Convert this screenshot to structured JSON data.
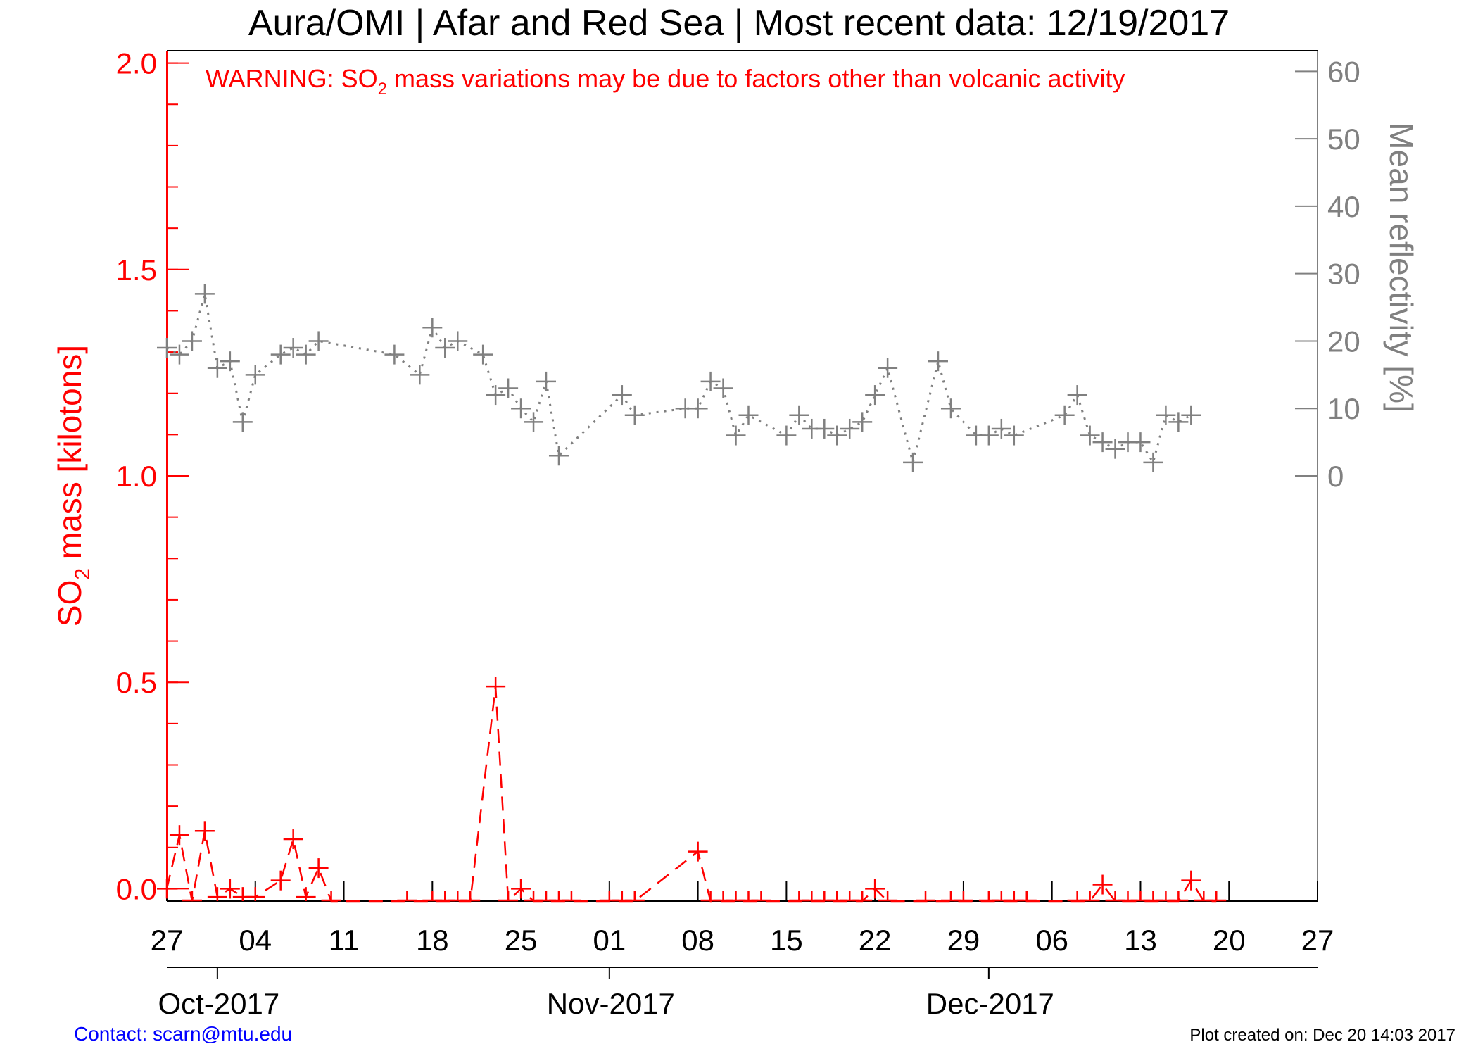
{
  "page": {
    "title": "Aura/OMI | Afar and Red Sea | Most recent data: 12/19/2017",
    "warning_prefix": "WARNING: SO",
    "warning_sub": "2",
    "warning_suffix": " mass variations may be due to factors other than volcanic activity",
    "contact": "Contact: scarn@mtu.edu",
    "plot_created": "Plot created on: Dec 20 14:03 2017"
  },
  "colors": {
    "so2": "#ff0000",
    "reflectivity": "#808080",
    "contact": "#0000ff"
  },
  "chart_data": {
    "type": "line",
    "title": "Aura/OMI | Afar and Red Sea | Most recent data: 12/19/2017",
    "grid": false,
    "x_range": [
      "2017-09-27",
      "2017-12-27"
    ],
    "x_tick_labels": [
      "27",
      "04",
      "11",
      "18",
      "25",
      "01",
      "08",
      "15",
      "22",
      "29",
      "06",
      "13",
      "20",
      "27"
    ],
    "x_tick_dates": [
      "2017-09-27",
      "2017-10-04",
      "2017-10-11",
      "2017-10-18",
      "2017-10-25",
      "2017-11-01",
      "2017-11-08",
      "2017-11-15",
      "2017-11-22",
      "2017-11-29",
      "2017-12-06",
      "2017-12-13",
      "2017-12-20",
      "2017-12-27"
    ],
    "months": [
      {
        "label": "Oct-2017",
        "start": "2017-10-01"
      },
      {
        "label": "Nov-2017",
        "start": "2017-11-01"
      },
      {
        "label": "Dec-2017",
        "start": "2017-12-01"
      }
    ],
    "y_left": {
      "label_main": "SO",
      "label_sub": "2",
      "label_tail": " mass [kilotons]",
      "range": [
        -0.03,
        2.03
      ],
      "major_ticks": [
        0.0,
        0.5,
        1.0,
        1.5,
        2.0
      ],
      "major_tick_labels": [
        "0.0",
        "0.5",
        "1.0",
        "1.5",
        "2.0"
      ],
      "minor_step": 0.1
    },
    "y_right": {
      "label": "Mean reflectivity [%]",
      "value_range": [
        0,
        60
      ],
      "maps_to_left": [
        1.0,
        1.98
      ],
      "major_ticks": [
        0,
        10,
        20,
        30,
        40,
        50,
        60
      ],
      "major_tick_labels": [
        "0",
        "10",
        "20",
        "30",
        "40",
        "50",
        "60"
      ]
    },
    "series": [
      {
        "name": "SO2 mass",
        "axis": "left",
        "style": "dashed",
        "x": [
          "2017-09-27",
          "2017-09-28",
          "2017-09-29",
          "2017-09-30",
          "2017-10-01",
          "2017-10-02",
          "2017-10-03",
          "2017-10-04",
          "2017-10-06",
          "2017-10-07",
          "2017-10-08",
          "2017-10-09",
          "2017-10-10",
          "2017-10-16",
          "2017-10-18",
          "2017-10-19",
          "2017-10-20",
          "2017-10-21",
          "2017-10-23",
          "2017-10-24",
          "2017-10-25",
          "2017-10-26",
          "2017-10-27",
          "2017-10-28",
          "2017-10-29",
          "2017-11-01",
          "2017-11-02",
          "2017-11-03",
          "2017-11-08",
          "2017-11-09",
          "2017-11-10",
          "2017-11-11",
          "2017-11-12",
          "2017-11-13",
          "2017-11-16",
          "2017-11-17",
          "2017-11-18",
          "2017-11-19",
          "2017-11-20",
          "2017-11-21",
          "2017-11-22",
          "2017-11-23",
          "2017-11-26",
          "2017-11-28",
          "2017-11-29",
          "2017-12-01",
          "2017-12-02",
          "2017-12-03",
          "2017-12-04",
          "2017-12-08",
          "2017-12-09",
          "2017-12-10",
          "2017-12-11",
          "2017-12-12",
          "2017-12-13",
          "2017-12-14",
          "2017-12-15",
          "2017-12-16",
          "2017-12-17",
          "2017-12-18",
          "2017-12-19"
        ],
        "values": [
          0.0,
          0.13,
          -0.03,
          0.14,
          -0.02,
          0.0,
          -0.02,
          -0.02,
          0.02,
          0.12,
          -0.02,
          0.05,
          -0.03,
          -0.03,
          -0.03,
          -0.03,
          -0.03,
          -0.03,
          0.49,
          -0.03,
          0.0,
          -0.03,
          -0.03,
          -0.03,
          -0.03,
          -0.03,
          -0.03,
          -0.03,
          0.09,
          -0.03,
          -0.03,
          -0.03,
          -0.03,
          -0.03,
          -0.03,
          -0.03,
          -0.03,
          -0.03,
          -0.03,
          -0.03,
          0.0,
          -0.03,
          -0.03,
          -0.03,
          -0.03,
          -0.03,
          -0.03,
          -0.03,
          -0.03,
          -0.03,
          -0.03,
          0.01,
          -0.03,
          -0.03,
          -0.03,
          -0.03,
          -0.03,
          -0.03,
          0.02,
          -0.03,
          -0.03
        ]
      },
      {
        "name": "Mean reflectivity",
        "axis": "right",
        "style": "dotted",
        "x": [
          "2017-09-27",
          "2017-09-28",
          "2017-09-29",
          "2017-09-30",
          "2017-10-01",
          "2017-10-02",
          "2017-10-03",
          "2017-10-04",
          "2017-10-06",
          "2017-10-07",
          "2017-10-08",
          "2017-10-09",
          "2017-10-15",
          "2017-10-17",
          "2017-10-18",
          "2017-10-19",
          "2017-10-20",
          "2017-10-22",
          "2017-10-23",
          "2017-10-24",
          "2017-10-25",
          "2017-10-26",
          "2017-10-27",
          "2017-10-28",
          "2017-11-02",
          "2017-11-03",
          "2017-11-07",
          "2017-11-08",
          "2017-11-09",
          "2017-11-10",
          "2017-11-11",
          "2017-11-12",
          "2017-11-15",
          "2017-11-16",
          "2017-11-17",
          "2017-11-18",
          "2017-11-19",
          "2017-11-20",
          "2017-11-21",
          "2017-11-22",
          "2017-11-23",
          "2017-11-25",
          "2017-11-27",
          "2017-11-28",
          "2017-11-30",
          "2017-12-01",
          "2017-12-02",
          "2017-12-03",
          "2017-12-07",
          "2017-12-08",
          "2017-12-09",
          "2017-12-10",
          "2017-12-11",
          "2017-12-12",
          "2017-12-13",
          "2017-12-14",
          "2017-12-15",
          "2017-12-16",
          "2017-12-17"
        ],
        "values": [
          19,
          18,
          20,
          27,
          16,
          17,
          8,
          15,
          18,
          19,
          18,
          20,
          18,
          15,
          22,
          19,
          20,
          18,
          12,
          13,
          10,
          8,
          14,
          3,
          12,
          9,
          10,
          10,
          14,
          13,
          6,
          9,
          6,
          9,
          7,
          7,
          6,
          7,
          8,
          12,
          16,
          2,
          17,
          10,
          6,
          6,
          7,
          6,
          9,
          12,
          6,
          5,
          4,
          5,
          5,
          2,
          9,
          8,
          9
        ]
      }
    ]
  }
}
